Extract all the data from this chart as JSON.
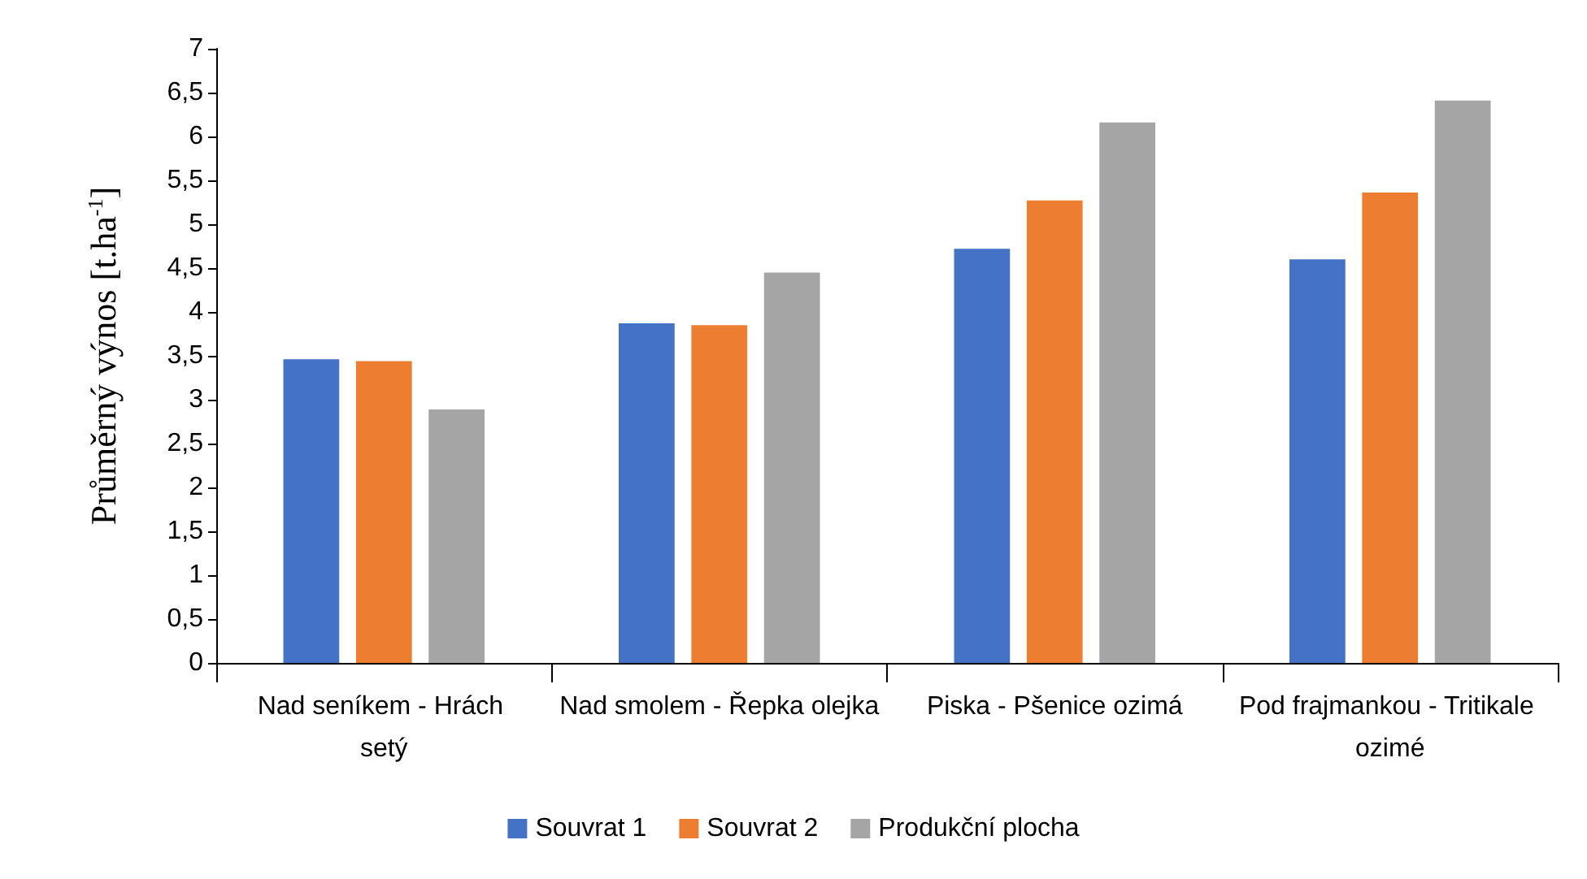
{
  "chart_data": {
    "type": "bar",
    "ylabel": "Průměrný výnos [t.ha$^{-1}$]",
    "categories": [
      "Nad seníkem - Hrách setý",
      "Nad smolem - Řepka olejka",
      "Piska - Pšenice ozimá",
      "Pod frajmankou - Tritikale ozimé"
    ],
    "series": [
      {
        "name": "Souvrat 1",
        "color": "#4472c4",
        "values": [
          3.46,
          3.87,
          4.72,
          4.6
        ]
      },
      {
        "name": "Souvrat 2",
        "color": "#ed7d31",
        "values": [
          3.44,
          3.85,
          5.27,
          5.36
        ]
      },
      {
        "name": "Produkční plocha",
        "color": "#a5a5a5",
        "values": [
          2.89,
          4.45,
          6.16,
          6.41
        ]
      }
    ],
    "ylim": [
      0,
      7
    ],
    "yticks": [
      0,
      {
        "value": 0.5,
        "label": "0,5"
      },
      1,
      {
        "value": 1.5,
        "label": "1,5"
      },
      2,
      {
        "value": 2.5,
        "label": "2,5"
      },
      3,
      {
        "value": 3.5,
        "label": "3,5"
      },
      4,
      {
        "value": 4.5,
        "label": "4,5"
      },
      5,
      {
        "value": 5.5,
        "label": "5,5"
      },
      6,
      {
        "value": 6.5,
        "label": "6,5"
      },
      7
    ],
    "grid": false,
    "legend": "bottom"
  }
}
